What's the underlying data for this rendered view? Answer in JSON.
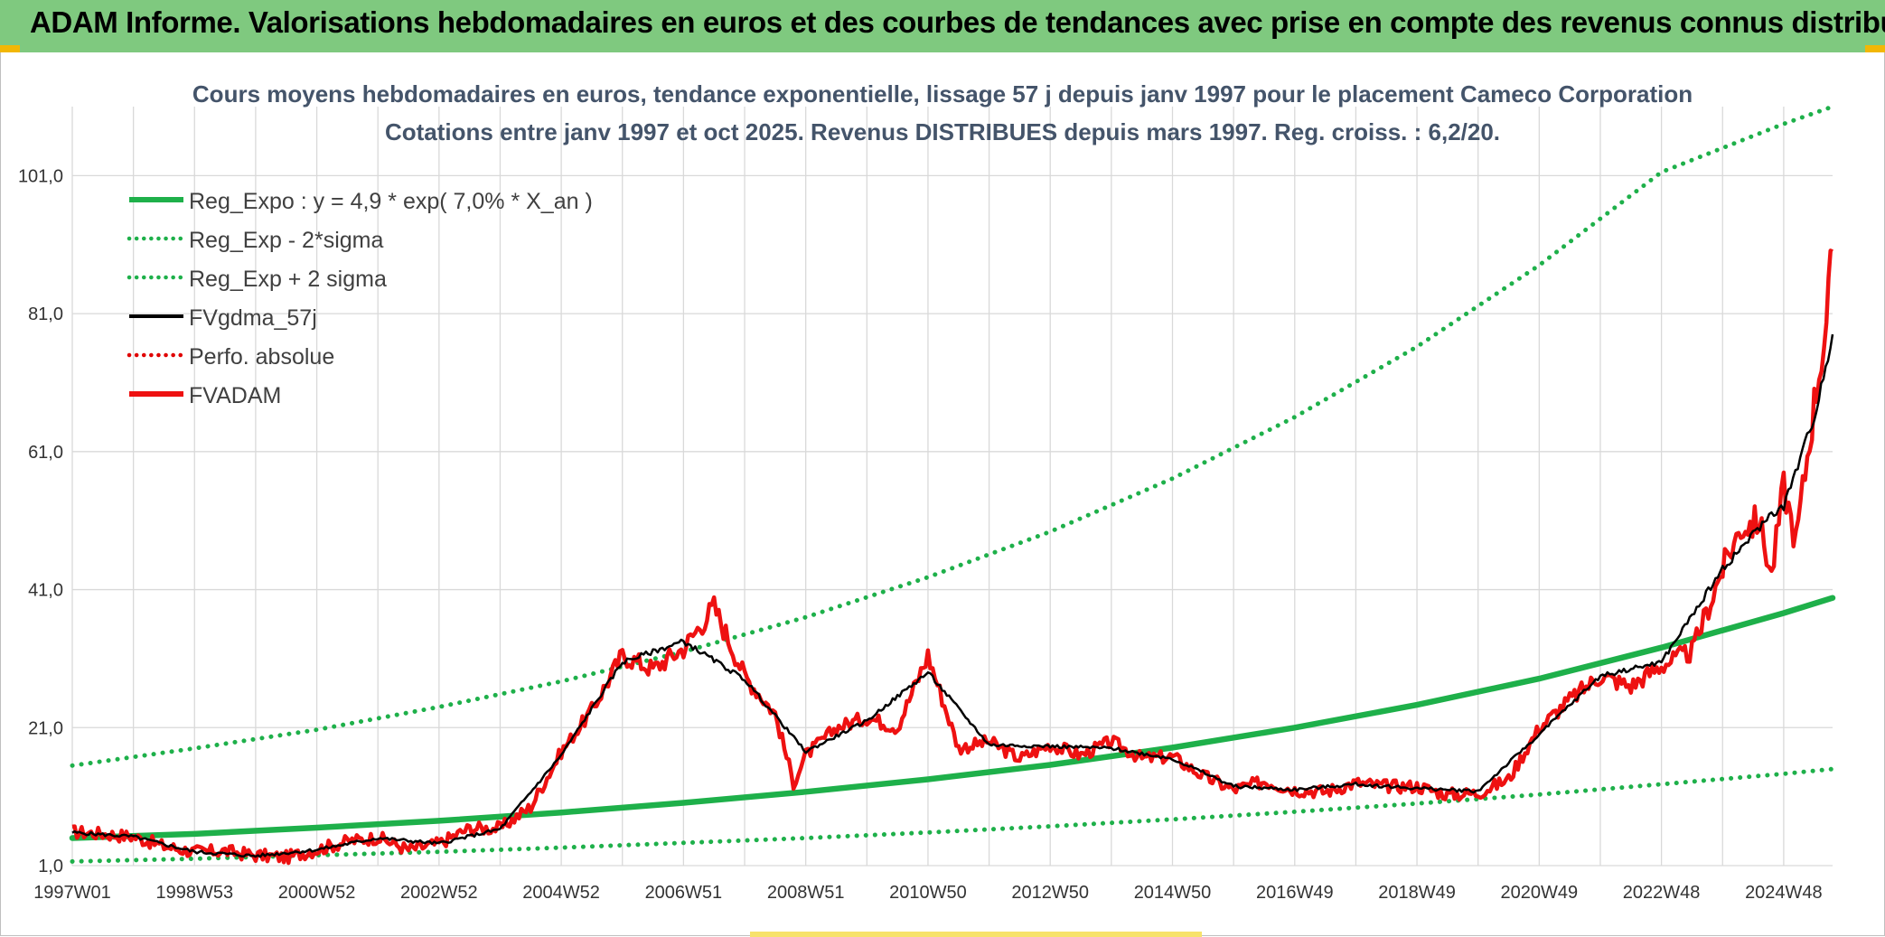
{
  "banner": {
    "title": "ADAM Informe. Valorisations hebdomadaires en euros et des courbes de tendances avec prise en compte des revenus connus distribués"
  },
  "colors": {
    "banner_bg": "#7fc97f",
    "trend": "#1eb04a",
    "sigma": "#1eb04a",
    "fvgdma": "#000000",
    "perfo": "#e00000",
    "fvadam": "#ee1111",
    "title_text": "#44546a"
  },
  "chart_data": {
    "type": "line",
    "title_line1": "Cours moyens hebdomadaires en euros, tendance exponentielle, lissage 57 j depuis janv 1997 pour le placement Cameco Corporation",
    "title_line2": "Cotations entre janv 1997 et oct 2025. Revenus DISTRIBUES depuis mars 1997. Reg. croiss. : 6,2/20.",
    "xlabel": "",
    "ylabel": "",
    "xlim": [
      1997.0,
      2025.8
    ],
    "ylim": [
      1.0,
      111.0
    ],
    "y_ticks": [
      1.0,
      21.0,
      41.0,
      61.0,
      81.0,
      101.0
    ],
    "y_tick_labels": [
      "1,0",
      "21,0",
      "41,0",
      "61,0",
      "81,0",
      "101,0"
    ],
    "x_ticks": [
      1997.0,
      1999.0,
      2001.0,
      2003.0,
      2005.0,
      2007.0,
      2009.0,
      2011.0,
      2013.0,
      2015.0,
      2017.0,
      2019.0,
      2021.0,
      2023.0,
      2025.0
    ],
    "x_tick_labels": [
      "1997W01",
      "1998W53",
      "2000W52",
      "2002W52",
      "2004W52",
      "2006W51",
      "2008W51",
      "2010W50",
      "2012W50",
      "2014W50",
      "2016W49",
      "2018W49",
      "2020W49",
      "2022W48",
      "2024W48"
    ],
    "grid": true,
    "legend_position": "top-left",
    "legend": [
      {
        "label": "Reg_Expo : y = 4,9 * exp( 7,0% *  X_an )",
        "style": "solid-thick",
        "color": "#1eb04a"
      },
      {
        "label": "Reg_Exp - 2*sigma",
        "style": "dotted",
        "color": "#1eb04a"
      },
      {
        "label": "Reg_Exp + 2 sigma",
        "style": "dotted",
        "color": "#1eb04a"
      },
      {
        "label": "FVgdma_57j",
        "style": "solid",
        "color": "#000000"
      },
      {
        "label": "Perfo. absolue",
        "style": "dotted",
        "color": "#e00000"
      },
      {
        "label": "FVADAM",
        "style": "solid-thick",
        "color": "#ee1111"
      }
    ],
    "series": [
      {
        "name": "Reg_Expo : y = 4,9 * exp( 7,0% *  X_an )",
        "x": [
          1997,
          1999,
          2001,
          2003,
          2005,
          2007,
          2009,
          2011,
          2013,
          2015,
          2017,
          2019,
          2021,
          2023,
          2025,
          2025.8
        ],
        "values": [
          5.0,
          5.6,
          6.5,
          7.5,
          8.7,
          10.1,
          11.7,
          13.5,
          15.6,
          18.1,
          21.0,
          24.3,
          28.1,
          32.6,
          37.6,
          39.8
        ]
      },
      {
        "name": "Reg_Exp - 2*sigma",
        "x": [
          1997,
          1999,
          2001,
          2003,
          2005,
          2007,
          2009,
          2011,
          2013,
          2015,
          2017,
          2019,
          2021,
          2023,
          2025,
          2025.8
        ],
        "values": [
          1.6,
          2.0,
          2.5,
          3.0,
          3.6,
          4.3,
          5.0,
          5.8,
          6.7,
          7.7,
          8.8,
          10.0,
          11.3,
          12.8,
          14.3,
          15.0
        ]
      },
      {
        "name": "Reg_Exp + 2 sigma",
        "x": [
          1997,
          1999,
          2001,
          2003,
          2005,
          2007,
          2009,
          2011,
          2013,
          2015,
          2017,
          2019,
          2021,
          2023,
          2025,
          2025.8
        ],
        "values": [
          15.5,
          18.0,
          20.7,
          24.0,
          27.7,
          32.0,
          37.0,
          42.8,
          49.4,
          57.1,
          66.0,
          76.2,
          88.0,
          101.5,
          108.5,
          111.0
        ]
      },
      {
        "name": "FVADAM",
        "x": [
          1997.0,
          1997.5,
          1998.0,
          1998.5,
          1999.0,
          1999.5,
          2000.0,
          2000.5,
          2001.0,
          2001.5,
          2002.0,
          2002.5,
          2003.0,
          2003.5,
          2004.0,
          2004.5,
          2005.0,
          2005.5,
          2006.0,
          2006.5,
          2007.0,
          2007.5,
          2008.0,
          2008.5,
          2008.8,
          2009.0,
          2009.5,
          2010.0,
          2010.5,
          2011.0,
          2011.5,
          2012.0,
          2012.5,
          2013.0,
          2013.5,
          2014.0,
          2014.5,
          2015.0,
          2015.5,
          2016.0,
          2016.5,
          2017.0,
          2017.5,
          2018.0,
          2018.5,
          2019.0,
          2019.5,
          2020.0,
          2020.5,
          2021.0,
          2021.5,
          2022.0,
          2022.5,
          2023.0,
          2023.5,
          2024.0,
          2024.3,
          2024.6,
          2024.8,
          2025.0,
          2025.2,
          2025.5,
          2025.7,
          2025.8
        ],
        "values": [
          5.9,
          5.6,
          5.2,
          3.8,
          3.0,
          3.1,
          2.5,
          2.2,
          3.3,
          4.5,
          5.1,
          3.3,
          4.2,
          6.4,
          6.4,
          9.5,
          17.5,
          23.5,
          31.5,
          29.5,
          32.5,
          38.5,
          28.5,
          23.0,
          13.0,
          17.0,
          21.0,
          22.5,
          21.0,
          31.5,
          18.0,
          19.0,
          16.5,
          18.5,
          17.0,
          19.0,
          16.5,
          16.8,
          14.0,
          12.0,
          13.2,
          12.0,
          11.7,
          13.0,
          12.5,
          12.5,
          11.3,
          11.5,
          13.5,
          21.0,
          25.0,
          28.5,
          27.0,
          30.0,
          32.0,
          44.0,
          50.0,
          51.0,
          43.0,
          56.0,
          48.0,
          68.0,
          80.0,
          90.0
        ]
      },
      {
        "name": "FVgdma_57j",
        "x": [
          1997.0,
          1998.0,
          1999.0,
          2000.0,
          2001.0,
          2002.0,
          2003.0,
          2004.0,
          2005.0,
          2006.0,
          2007.0,
          2008.0,
          2009.0,
          2010.0,
          2011.0,
          2012.0,
          2013.0,
          2014.0,
          2015.0,
          2016.0,
          2017.0,
          2018.0,
          2019.0,
          2020.0,
          2021.0,
          2022.0,
          2023.0,
          2024.0,
          2024.8,
          2025.0,
          2025.5,
          2025.8
        ],
        "values": [
          5.8,
          5.2,
          3.0,
          2.4,
          3.3,
          5.0,
          4.2,
          6.3,
          17.0,
          30.5,
          33.5,
          28.0,
          17.5,
          22.0,
          29.0,
          18.5,
          18.3,
          18.0,
          16.5,
          12.5,
          12.0,
          12.8,
          12.2,
          11.8,
          20.0,
          28.5,
          30.5,
          44.0,
          52.0,
          53.0,
          66.0,
          78.0
        ]
      },
      {
        "name": "Perfo. absolue",
        "x": [],
        "values": []
      }
    ]
  }
}
